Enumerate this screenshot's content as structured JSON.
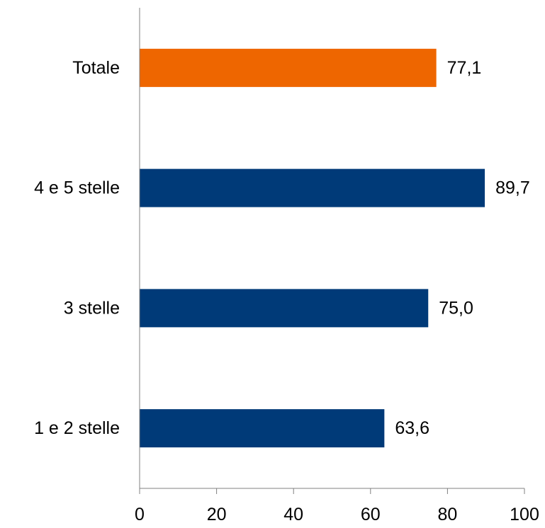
{
  "chart_data": {
    "type": "bar",
    "orientation": "horizontal",
    "categories": [
      "Totale",
      "4 e 5 stelle",
      "3 stelle",
      "1 e 2 stelle"
    ],
    "values": [
      77.1,
      89.7,
      75.0,
      63.6
    ],
    "value_labels": [
      "77,1",
      "89,7",
      "75,0",
      "63,6"
    ],
    "xlim": [
      0,
      100
    ],
    "xticks": [
      0,
      20,
      40,
      60,
      80,
      100
    ],
    "xtick_labels": [
      "0",
      "20",
      "40",
      "60",
      "80",
      "100"
    ],
    "grid": false,
    "legend": "none",
    "title": "",
    "xlabel": "",
    "ylabel": "",
    "colors": {
      "highlight": "#EE6600",
      "bar": "#003A78",
      "axis": "#808080"
    },
    "highlight_index": 0
  }
}
